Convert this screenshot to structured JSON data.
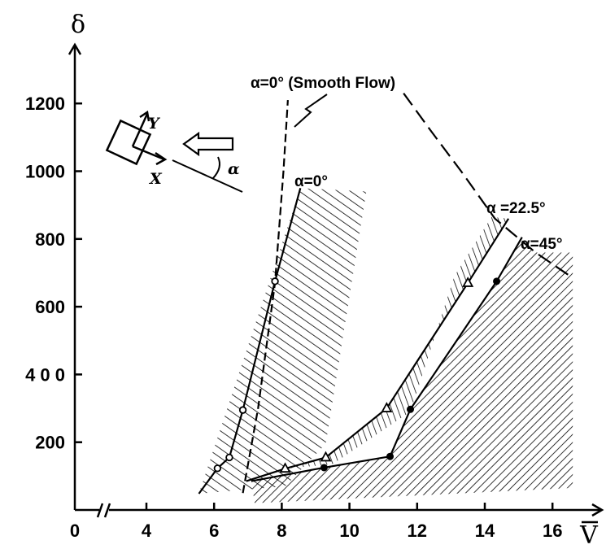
{
  "chart_data": {
    "type": "line",
    "title": "",
    "xlabel": "V",
    "ylabel": "δ",
    "xlim": [
      0,
      17
    ],
    "ylim": [
      0,
      1350
    ],
    "x_axis_break": true,
    "xticks": [
      {
        "value": 0,
        "label": "0"
      },
      {
        "value": 4,
        "label": "4"
      },
      {
        "value": 6,
        "label": "6"
      },
      {
        "value": 8,
        "label": "8"
      },
      {
        "value": 10,
        "label": "10"
      },
      {
        "value": 12,
        "label": "12"
      },
      {
        "value": 14,
        "label": "14"
      },
      {
        "value": 16,
        "label": "16"
      }
    ],
    "yticks": [
      {
        "value": 200,
        "label": "200"
      },
      {
        "value": 400,
        "label": "4 0 0"
      },
      {
        "value": 600,
        "label": "600"
      },
      {
        "value": 800,
        "label": "800"
      },
      {
        "value": 1000,
        "label": "1000"
      },
      {
        "value": 1200,
        "label": "1200"
      }
    ],
    "series": [
      {
        "name": "α=0°",
        "marker": "open-circle",
        "points": [
          [
            6.1,
            123
          ],
          [
            6.45,
            155
          ],
          [
            6.85,
            295
          ],
          [
            7.8,
            675
          ]
        ],
        "line": [
          [
            5.55,
            48
          ],
          [
            6.1,
            123
          ],
          [
            6.45,
            155
          ],
          [
            6.85,
            295
          ],
          [
            7.8,
            675
          ],
          [
            8.55,
            950
          ]
        ],
        "hatch_region": [
          [
            5.55,
            48
          ],
          [
            8.55,
            950
          ],
          [
            10.5,
            940
          ],
          [
            9.3,
            195
          ],
          [
            8.1,
            70
          ]
        ]
      },
      {
        "name": "α =22.5°",
        "marker": "open-triangle",
        "points": [
          [
            8.1,
            122
          ],
          [
            9.3,
            155
          ],
          [
            11.1,
            300
          ],
          [
            13.5,
            670
          ]
        ],
        "line": [
          [
            6.95,
            85
          ],
          [
            8.1,
            122
          ],
          [
            9.3,
            155
          ],
          [
            11.1,
            300
          ],
          [
            13.5,
            670
          ],
          [
            14.7,
            860
          ]
        ],
        "hatch_region": [
          [
            8.1,
            122
          ],
          [
            9.3,
            155
          ],
          [
            11.1,
            300
          ],
          [
            13.5,
            670
          ],
          [
            14.7,
            860
          ],
          [
            14.2,
            865
          ],
          [
            13.1,
            690
          ],
          [
            11.8,
            290
          ],
          [
            9.5,
            135
          ]
        ]
      },
      {
        "name": "α=45°",
        "marker": "filled-circle",
        "points": [
          [
            9.25,
            125
          ],
          [
            11.2,
            158
          ],
          [
            11.8,
            297
          ],
          [
            14.35,
            675
          ]
        ],
        "line": [
          [
            7.1,
            85
          ],
          [
            9.25,
            125
          ],
          [
            11.2,
            158
          ],
          [
            11.8,
            297
          ],
          [
            14.35,
            675
          ],
          [
            15.1,
            805
          ]
        ],
        "hatch_region": [
          [
            7.1,
            85
          ],
          [
            9.25,
            125
          ],
          [
            11.2,
            158
          ],
          [
            11.8,
            297
          ],
          [
            14.35,
            675
          ],
          [
            15.1,
            805
          ],
          [
            15.5,
            760
          ],
          [
            16.6,
            760
          ],
          [
            16.6,
            65
          ],
          [
            7.2,
            20
          ]
        ]
      },
      {
        "name": "α=0° (Smooth Flow)",
        "style": "dashed",
        "line": [
          [
            6.85,
            50
          ],
          [
            7.3,
            300
          ],
          [
            7.8,
            670
          ],
          [
            8.05,
            1000
          ],
          [
            8.18,
            1210
          ]
        ]
      },
      {
        "name": "",
        "style": "long-dash",
        "line": [
          [
            11.6,
            1230
          ],
          [
            12.4,
            1120
          ],
          [
            13.3,
            1000
          ],
          [
            14.3,
            860
          ],
          [
            15.5,
            760
          ],
          [
            16.6,
            685
          ]
        ]
      }
    ],
    "annotations": {
      "smooth_flow_label": "α=0° (Smooth Flow)",
      "alpha0_label": "α=0°",
      "alpha225_label": "α =22.5°",
      "alpha45_label": "α=45°",
      "inset_y": "Y",
      "inset_x": "X",
      "inset_alpha": "α"
    }
  }
}
